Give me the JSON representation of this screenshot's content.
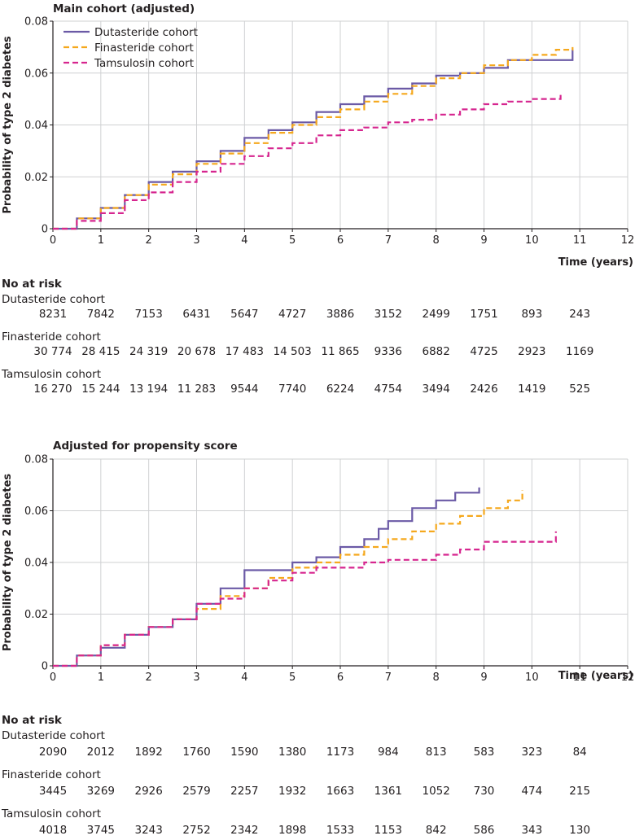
{
  "chart_data": [
    {
      "type": "line",
      "title": "Main cohort (adjusted)",
      "xlabel": "Time (years)",
      "ylabel": "Probability of type 2 diabetes",
      "xlim": [
        0,
        12
      ],
      "ylim": [
        0,
        0.08
      ],
      "x_ticks": [
        "0",
        "1",
        "2",
        "3",
        "4",
        "5",
        "6",
        "7",
        "8",
        "9",
        "10",
        "11",
        "12"
      ],
      "y_ticks": [
        "0",
        "0.02",
        "0.04",
        "0.06",
        "0.08"
      ],
      "grid": true,
      "legend_position": "top-left",
      "series": [
        {
          "name": "Dutasteride cohort",
          "color": "#6b5aa6",
          "dash": "solid",
          "x": [
            0,
            0.25,
            0.5,
            1.0,
            1.5,
            2.0,
            2.5,
            3.0,
            3.5,
            4.0,
            4.5,
            5.0,
            5.5,
            6.0,
            6.5,
            7.0,
            7.5,
            8.0,
            8.5,
            9.0,
            9.5,
            10.0,
            10.5,
            10.85,
            10.85
          ],
          "y": [
            0,
            0,
            0.004,
            0.008,
            0.013,
            0.018,
            0.022,
            0.026,
            0.03,
            0.035,
            0.038,
            0.041,
            0.045,
            0.048,
            0.051,
            0.054,
            0.056,
            0.059,
            0.06,
            0.062,
            0.065,
            0.065,
            0.065,
            0.065,
            0.069
          ]
        },
        {
          "name": "Finasteride cohort",
          "color": "#f5a81d",
          "dash": "dashed",
          "x": [
            0,
            0.25,
            0.5,
            1.0,
            1.5,
            2.0,
            2.5,
            3.0,
            3.5,
            4.0,
            4.5,
            5.0,
            5.5,
            6.0,
            6.5,
            7.0,
            7.5,
            8.0,
            8.5,
            9.0,
            9.5,
            10.0,
            10.5,
            10.85
          ],
          "y": [
            0,
            0,
            0.004,
            0.008,
            0.013,
            0.017,
            0.021,
            0.025,
            0.029,
            0.033,
            0.037,
            0.04,
            0.043,
            0.046,
            0.049,
            0.052,
            0.055,
            0.058,
            0.06,
            0.063,
            0.065,
            0.067,
            0.069,
            0.07
          ]
        },
        {
          "name": "Tamsulosin cohort",
          "color": "#d6268f",
          "dash": "dashed",
          "x": [
            0,
            0.25,
            0.5,
            1.0,
            1.5,
            2.0,
            2.5,
            3.0,
            3.5,
            4.0,
            4.5,
            5.0,
            5.5,
            6.0,
            6.5,
            7.0,
            7.5,
            8.0,
            8.5,
            9.0,
            9.5,
            10.0,
            10.4,
            10.6,
            10.6
          ],
          "y": [
            0,
            0,
            0.003,
            0.006,
            0.011,
            0.014,
            0.018,
            0.022,
            0.025,
            0.028,
            0.031,
            0.033,
            0.036,
            0.038,
            0.039,
            0.041,
            0.042,
            0.044,
            0.046,
            0.048,
            0.049,
            0.05,
            0.05,
            0.05,
            0.052
          ]
        }
      ],
      "risk_table": {
        "heading": "No at risk",
        "rows": [
          {
            "label": "Dutasteride cohort",
            "values": [
              "8231",
              "7842",
              "7153",
              "6431",
              "5647",
              "4727",
              "3886",
              "3152",
              "2499",
              "1751",
              "893",
              "243"
            ]
          },
          {
            "label": "Finasteride cohort",
            "values": [
              "30 774",
              "28 415",
              "24 319",
              "20 678",
              "17 483",
              "14 503",
              "11 865",
              "9336",
              "6882",
              "4725",
              "2923",
              "1169"
            ]
          },
          {
            "label": "Tamsulosin cohort",
            "values": [
              "16 270",
              "15 244",
              "13 194",
              "11 283",
              "9544",
              "7740",
              "6224",
              "4754",
              "3494",
              "2426",
              "1419",
              "525"
            ]
          }
        ]
      }
    },
    {
      "type": "line",
      "title": "Adjusted for propensity score",
      "xlabel": "Time (years)",
      "ylabel": "Probability of type 2 diabetes",
      "xlim": [
        0,
        12
      ],
      "ylim": [
        0,
        0.08
      ],
      "x_ticks": [
        "0",
        "1",
        "2",
        "3",
        "4",
        "5",
        "6",
        "7",
        "8",
        "9",
        "10",
        "11",
        "12"
      ],
      "y_ticks": [
        "0",
        "0.02",
        "0.04",
        "0.06",
        "0.08"
      ],
      "grid": true,
      "series": [
        {
          "name": "Dutasteride cohort",
          "color": "#6b5aa6",
          "dash": "solid",
          "x": [
            0,
            0.25,
            0.5,
            1.0,
            1.5,
            2.0,
            2.5,
            3.0,
            3.5,
            4.0,
            4.5,
            5.0,
            5.5,
            6.0,
            6.5,
            6.8,
            7.0,
            7.5,
            8.0,
            8.4,
            8.9,
            8.9
          ],
          "y": [
            0,
            0,
            0.004,
            0.007,
            0.012,
            0.015,
            0.018,
            0.024,
            0.03,
            0.037,
            0.037,
            0.04,
            0.042,
            0.046,
            0.049,
            0.053,
            0.056,
            0.061,
            0.064,
            0.067,
            0.067,
            0.069
          ]
        },
        {
          "name": "Finasteride cohort",
          "color": "#f5a81d",
          "dash": "dashed",
          "x": [
            0,
            0.25,
            0.5,
            1.0,
            1.5,
            2.0,
            2.5,
            3.0,
            3.5,
            4.0,
            4.5,
            5.0,
            5.5,
            6.0,
            6.5,
            7.0,
            7.5,
            8.0,
            8.5,
            9.0,
            9.5,
            9.8
          ],
          "y": [
            0,
            0,
            0.004,
            0.008,
            0.012,
            0.015,
            0.018,
            0.022,
            0.027,
            0.03,
            0.034,
            0.038,
            0.04,
            0.043,
            0.046,
            0.049,
            0.052,
            0.055,
            0.058,
            0.061,
            0.064,
            0.068
          ]
        },
        {
          "name": "Tamsulosin cohort",
          "color": "#d6268f",
          "dash": "dashed",
          "x": [
            0,
            0.25,
            0.5,
            1.0,
            1.5,
            2.0,
            2.5,
            3.0,
            3.5,
            4.0,
            4.5,
            5.0,
            5.5,
            6.0,
            6.5,
            7.0,
            7.5,
            8.0,
            8.5,
            9.0,
            10.0,
            10.5,
            10.5
          ],
          "y": [
            0,
            0,
            0.004,
            0.008,
            0.012,
            0.015,
            0.018,
            0.024,
            0.026,
            0.03,
            0.033,
            0.036,
            0.038,
            0.038,
            0.04,
            0.041,
            0.041,
            0.043,
            0.045,
            0.048,
            0.048,
            0.048,
            0.052
          ]
        }
      ],
      "risk_table": {
        "heading": "No at risk",
        "rows": [
          {
            "label": "Dutasteride cohort",
            "values": [
              "2090",
              "2012",
              "1892",
              "1760",
              "1590",
              "1380",
              "1173",
              "984",
              "813",
              "583",
              "323",
              "84"
            ]
          },
          {
            "label": "Finasteride cohort",
            "values": [
              "3445",
              "3269",
              "2926",
              "2579",
              "2257",
              "1932",
              "1663",
              "1361",
              "1052",
              "730",
              "474",
              "215"
            ]
          },
          {
            "label": "Tamsulosin cohort",
            "values": [
              "4018",
              "3745",
              "3243",
              "2752",
              "2342",
              "1898",
              "1533",
              "1153",
              "842",
              "586",
              "343",
              "130"
            ]
          }
        ]
      }
    }
  ],
  "style": {
    "grid_color": "#cfd0d2",
    "axis_color": "#231f20"
  }
}
